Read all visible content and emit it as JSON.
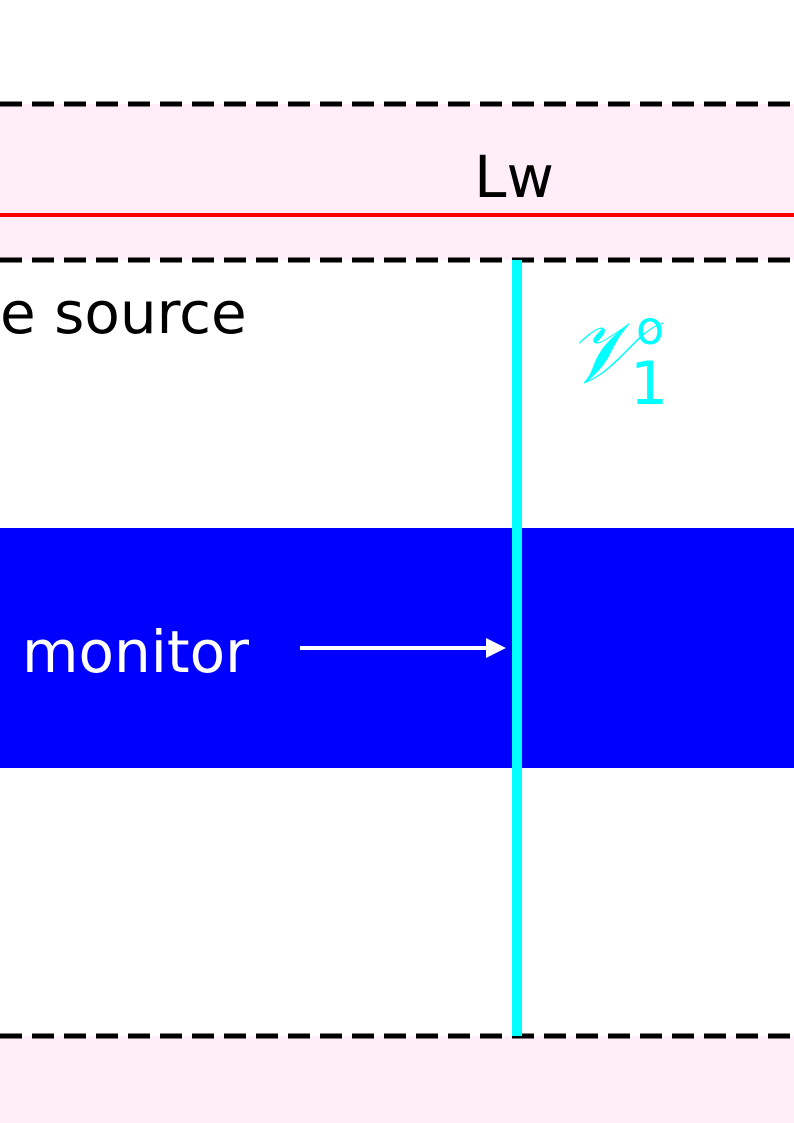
{
  "diagram": {
    "top_region_label": "Lw",
    "source_label": "e source",
    "monitor_label": "monitor",
    "symbol": {
      "base": "𝒱",
      "superscript": "o",
      "subscript": "1"
    },
    "colors": {
      "pml_fill": "#ffeef8",
      "dashed_line": "#000000",
      "red_line": "#ff0000",
      "waveguide_fill": "#0000ff",
      "monitor_plane": "#00ffff",
      "monitor_text": "#ffffff",
      "arrow": "#ffffff",
      "text": "#000000"
    }
  }
}
